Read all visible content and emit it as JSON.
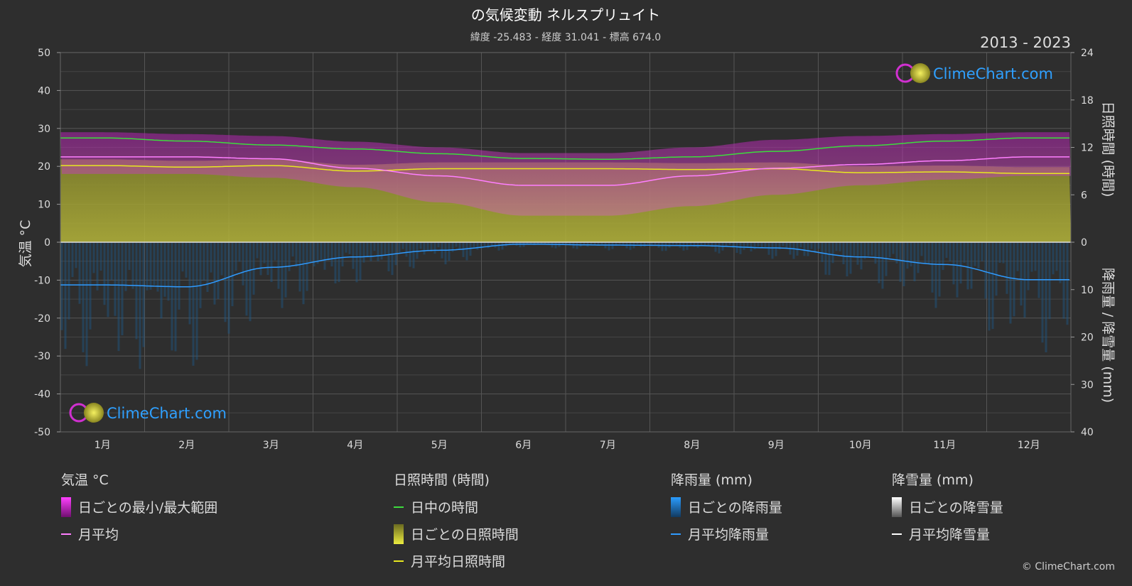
{
  "chart_data": {
    "type": "area",
    "title": "の気候変動 ネルスプリュイト",
    "subtitle": "緯度 -25.483 - 経度 31.041 - 標高 674.0",
    "period": "2013 - 2023",
    "watermark": "ClimeChart.com",
    "copyright": "© ClimeChart.com",
    "months": [
      "1月",
      "2月",
      "3月",
      "4月",
      "5月",
      "6月",
      "7月",
      "8月",
      "9月",
      "10月",
      "11月",
      "12月"
    ],
    "y_left": {
      "label": "気温 °C",
      "range": [
        -50,
        50
      ],
      "ticks": [
        50,
        40,
        30,
        20,
        10,
        0,
        -10,
        -20,
        -30,
        -40,
        -50
      ]
    },
    "y_right_top": {
      "label": "日照時間 (時間)",
      "range": [
        0,
        24
      ],
      "ticks": [
        24,
        18,
        12,
        6,
        0
      ]
    },
    "y_right_bottom": {
      "label": "降雨量 / 降雪量 (mm)",
      "range": [
        0,
        40
      ],
      "ticks": [
        10,
        20,
        30,
        40
      ]
    },
    "series": {
      "daylight_hours": [
        13.2,
        12.8,
        12.3,
        11.8,
        11.2,
        10.6,
        10.5,
        10.8,
        11.5,
        12.2,
        12.8,
        13.2
      ],
      "monthly_avg_temp": [
        22.5,
        22.5,
        22.0,
        19.5,
        17.5,
        15.0,
        15.0,
        17.5,
        19.5,
        20.5,
        21.5,
        22.5
      ],
      "monthly_avg_sunshine_hours": [
        9.7,
        9.5,
        9.7,
        9.0,
        9.3,
        9.3,
        9.3,
        9.2,
        9.3,
        8.8,
        8.9,
        8.7
      ],
      "monthly_avg_rain_mm": [
        9.0,
        9.4,
        5.3,
        3.1,
        1.7,
        0.4,
        0.6,
        0.7,
        1.2,
        3.1,
        4.7,
        7.9
      ],
      "daily_temp_max_avg": [
        29,
        28.5,
        28,
        26.5,
        25,
        23.5,
        23.5,
        25,
        27,
        28,
        28.5,
        29
      ],
      "daily_temp_min_avg": [
        18,
        18,
        17,
        14.5,
        10.5,
        7,
        7,
        9.5,
        12.5,
        15,
        16.5,
        17.5
      ]
    },
    "legend": [
      {
        "heading": "気温 °C",
        "items": [
          {
            "label": "日ごとの最小/最大範囲",
            "icon": "range-swatch",
            "color": "#e020e0"
          },
          {
            "label": "月平均",
            "icon": "line",
            "color": "#ff7fff"
          }
        ]
      },
      {
        "heading": "日照時間 (時間)",
        "items": [
          {
            "label": "日中の時間",
            "icon": "line",
            "color": "#3ddc3d"
          },
          {
            "label": "日ごとの日照時間",
            "icon": "sun-swatch",
            "color": "#d4d43a"
          },
          {
            "label": "月平均日照時間",
            "icon": "line",
            "color": "#e8e820"
          }
        ]
      },
      {
        "heading": "降雨量 (mm)",
        "items": [
          {
            "label": "日ごとの降雨量",
            "icon": "rain-swatch",
            "color": "#1e90ff"
          },
          {
            "label": "月平均降雨量",
            "icon": "line",
            "color": "#2f9bff"
          }
        ]
      },
      {
        "heading": "降雪量 (mm)",
        "items": [
          {
            "label": "日ごとの降雪量",
            "icon": "snow-swatch",
            "color": "#ffffff"
          },
          {
            "label": "月平均降雪量",
            "icon": "line",
            "color": "#ffffff"
          }
        ]
      }
    ],
    "grid": true
  }
}
